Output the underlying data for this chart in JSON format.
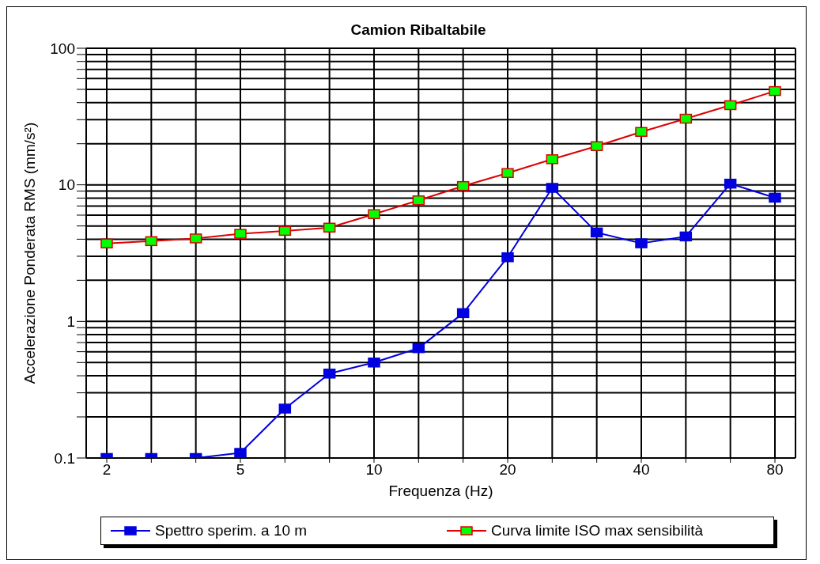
{
  "chart_data": {
    "type": "line",
    "title": "Camion Ribaltabile",
    "xlabel": "Frequenza (Hz)",
    "ylabel": "Accelerazione Ponderata RMS (mm/s²)",
    "categories": [
      "2",
      null,
      null,
      "5",
      null,
      null,
      "10",
      null,
      null,
      "20",
      null,
      null,
      "40",
      null,
      null,
      "80"
    ],
    "series": [
      {
        "name": "Spettro sperim. a 10 m",
        "color": "#0000e0",
        "values": [
          0.1,
          0.1,
          0.1,
          0.109,
          0.23,
          0.415,
          0.5,
          0.637,
          1.15,
          2.95,
          9.5,
          4.48,
          3.73,
          4.19,
          10.2,
          8.05
        ]
      },
      {
        "name": "Curva limite ISO max sensibilità",
        "color": "#dd0000",
        "colors": [
          "#00ff00",
          "#00ff00",
          "#00ff00",
          "#00ff00",
          "#00ff00",
          "#00ff00",
          "#00ff00",
          "#00ff00",
          "#00ff00",
          "#00ff00",
          "#00ff00",
          "#00ff00",
          "#00ff00",
          "#00ff00",
          "#00ff00",
          "#00ff00"
        ],
        "values": [
          3.72,
          3.87,
          4.05,
          4.38,
          4.6,
          4.86,
          6.1,
          7.7,
          9.8,
          12.2,
          15.4,
          19.2,
          24.4,
          30.5,
          38.3,
          48.6
        ]
      }
    ],
    "log": "y",
    "ylim": [
      0.1,
      100
    ],
    "yticks": [
      0.1,
      {
        "value": 0.2,
        "label": null
      },
      {
        "value": 0.3,
        "label": null
      },
      {
        "value": 0.4,
        "label": null
      },
      {
        "value": 0.5,
        "label": null
      },
      {
        "value": 0.6,
        "label": null
      },
      {
        "value": 0.7,
        "label": null
      },
      {
        "value": 0.8,
        "label": null
      },
      {
        "value": 0.9,
        "label": null
      },
      1,
      {
        "value": 2,
        "label": null
      },
      {
        "value": 3,
        "label": null
      },
      {
        "value": 4,
        "label": null
      },
      {
        "value": 5,
        "label": null
      },
      {
        "value": 6,
        "label": null
      },
      {
        "value": 7,
        "label": null
      },
      {
        "value": 8,
        "label": null
      },
      {
        "value": 9,
        "label": null
      },
      10,
      {
        "value": 20,
        "label": null
      },
      {
        "value": 30,
        "label": null
      },
      {
        "value": 40,
        "label": null
      },
      {
        "value": 50,
        "label": null
      },
      {
        "value": 60,
        "label": null
      },
      {
        "value": 70,
        "label": null
      },
      {
        "value": 80,
        "label": null
      },
      {
        "value": 90,
        "label": null
      },
      100
    ],
    "grid": true,
    "legend": "bottom",
    "marker": "square",
    "line_style": "solid"
  }
}
